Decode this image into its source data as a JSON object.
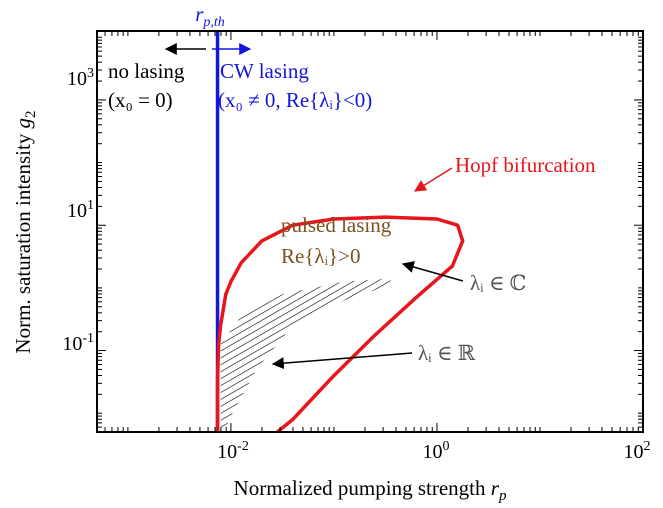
{
  "chart_data": {
    "type": "line",
    "title": "",
    "xlabel": "Normalized pumping strength",
    "xlabel_sym": "r",
    "xlabel_sub": "p",
    "ylabel": "Norm. saturation intensity",
    "ylabel_sym": "g",
    "ylabel_sub": "2",
    "xscale": "log",
    "yscale": "log",
    "xlim_log10": [
      -3.3,
      2
    ],
    "ylim_log10": [
      -2.3,
      4.1
    ],
    "x_ticks": [
      {
        "base": "10",
        "exp": "-2",
        "log10": -2
      },
      {
        "base": "10",
        "exp": "0",
        "log10": 0
      },
      {
        "base": "10",
        "exp": "2",
        "log10": 2
      }
    ],
    "y_ticks": [
      {
        "base": "10",
        "exp": "-1",
        "log10": -1
      },
      {
        "base": "10",
        "exp": "1",
        "log10": 1
      },
      {
        "base": "10",
        "exp": "3",
        "log10": 3
      }
    ],
    "threshold": {
      "label_sym": "r",
      "label_sub": "p,th",
      "x_log10": -2.13,
      "color": "#1515e0"
    },
    "series": [
      {
        "name": "Hopf bifurcation",
        "color": "#e8151b",
        "points_log10": [
          [
            -2.13,
            -2.3
          ],
          [
            -2.13,
            -1.5
          ],
          [
            -2.12,
            -0.9
          ],
          [
            -2.1,
            -0.6
          ],
          [
            -2.05,
            -0.1
          ],
          [
            -2.0,
            0.1
          ],
          [
            -1.9,
            0.4
          ],
          [
            -1.7,
            0.75
          ],
          [
            -1.4,
            1.0
          ],
          [
            -1.0,
            1.1
          ],
          [
            -0.5,
            1.13
          ],
          [
            0.0,
            1.1
          ],
          [
            0.2,
            1.0
          ],
          [
            0.25,
            0.75
          ],
          [
            0.15,
            0.35
          ],
          [
            -0.2,
            -0.15
          ],
          [
            -0.6,
            -0.75
          ],
          [
            -1.0,
            -1.4
          ],
          [
            -1.4,
            -2.1
          ],
          [
            -1.55,
            -2.3
          ]
        ]
      }
    ],
    "hatched_region": {
      "name": "real eigenvalues region",
      "points_log10": [
        [
          -2.1,
          -2.3
        ],
        [
          -2.1,
          -0.9
        ],
        [
          -1.9,
          -0.45
        ],
        [
          -1.5,
          -0.1
        ],
        [
          -0.9,
          0.1
        ],
        [
          -0.45,
          0.15
        ],
        [
          -0.45,
          0.05
        ],
        [
          -0.9,
          -0.2
        ],
        [
          -1.4,
          -0.6
        ],
        [
          -1.75,
          -1.3
        ],
        [
          -2.0,
          -2.05
        ],
        [
          -2.07,
          -2.3
        ]
      ]
    },
    "annotations": {
      "no_lasing": "no lasing",
      "no_lasing_cond": "(x₀ = 0)",
      "cw_lasing": "CW lasing",
      "cw_lasing_cond": "(x₀ ≠ 0, Re{λᵢ}<0)",
      "hopf": "Hopf bifurcation",
      "pulsed": "pulsed lasing",
      "pulsed_cond": "Re{λᵢ}>0",
      "complex": "λᵢ ∈ ℂ",
      "real": "λᵢ ∈ ℝ"
    },
    "colors": {
      "cw": "#1515e0",
      "hopf": "#e8151b",
      "pulsed": "#7a5220",
      "text": "#000000",
      "gray": "#555555"
    },
    "grid": false,
    "legend": "none"
  }
}
